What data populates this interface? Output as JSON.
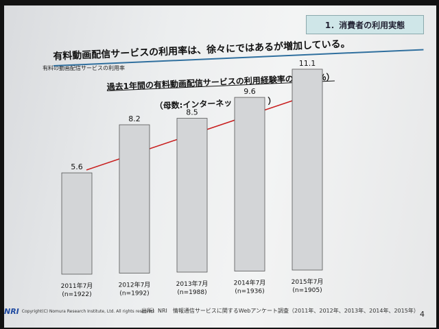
{
  "slide": {
    "section_tag": "1．消費者の利用実態",
    "page_label": "有料の動画配信サービスの利用率",
    "headline": "有料動画配信サービスの利用率は、徐々にではあるが増加している。",
    "footer_copyright": "Copyright(C) Nomura Research Institute, Ltd. All rights reserved.",
    "footer_logo": "NRI",
    "footer_source": "出所）NRI　情報通信サービスに関するWebアンケート調査（2011年、2012年、2013年、2014年、2015年）",
    "page_number": "4"
  },
  "chart_data": {
    "type": "bar",
    "title": "過去1年間の有料動画配信サービスの利用経験率の推移（％）",
    "subtitle": "（母数:インターネット利用者 ）",
    "categories": [
      "2011年7月",
      "2012年7月",
      "2013年7月",
      "2014年7月",
      "2015年7月"
    ],
    "category_notes": [
      "(n=1922)",
      "(n=1992)",
      "(n=1988)",
      "(n=1936)",
      "(n=1905)"
    ],
    "values": [
      5.6,
      8.2,
      8.5,
      9.6,
      11.1
    ],
    "value_labels": [
      "5.6",
      "8.2",
      "8.5",
      "9.6",
      "11.1"
    ],
    "ylim": [
      0,
      12
    ],
    "grid": false,
    "legend": "none",
    "bar_color": "#d3d5d7",
    "trend_arrow_color": "#c81e1e"
  }
}
